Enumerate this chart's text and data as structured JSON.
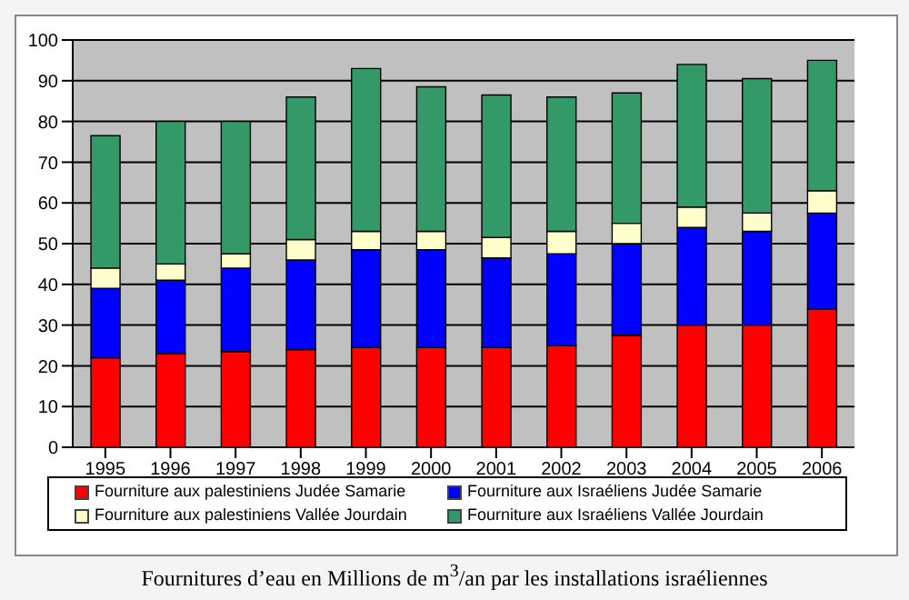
{
  "chart_data": {
    "type": "bar",
    "stacked": true,
    "categories": [
      "1995",
      "1996",
      "1997",
      "1998",
      "1999",
      "2000",
      "2001",
      "2002",
      "2003",
      "2004",
      "2005",
      "2006"
    ],
    "series": [
      {
        "name": "Fourniture aux palestiniens Judée Samarie",
        "color": "#ff0000",
        "values": [
          22,
          23,
          23.5,
          24,
          24.5,
          24.5,
          24.5,
          25,
          27.5,
          30,
          30,
          34
        ]
      },
      {
        "name": "Fourniture aux Israéliens Judée Samarie",
        "color": "#0000ff",
        "values": [
          17,
          18,
          20.5,
          22,
          24,
          24,
          22,
          22.5,
          22.5,
          24,
          23,
          23.5
        ]
      },
      {
        "name": "Fourniture aux palestiniens Vallée Jourdain",
        "color": "#ffffcc",
        "values": [
          5,
          4,
          3.5,
          5,
          4.5,
          4.5,
          5,
          5.5,
          5,
          5,
          4.5,
          5.5
        ]
      },
      {
        "name": "Fourniture aux Israéliens Vallée Jourdain",
        "color": "#339966",
        "values": [
          32.5,
          35,
          32.5,
          35,
          40,
          35.5,
          35,
          33,
          32,
          35,
          33,
          32
        ]
      }
    ],
    "ylim": [
      0,
      100
    ],
    "yticks": [
      0,
      10,
      20,
      30,
      40,
      50,
      60,
      70,
      80,
      90,
      100
    ],
    "grid": "y",
    "legend": "bottom",
    "annotations": [
      "Fournitures d’eau en Millions de m$^{3}$/an par les installations israéliennes"
    ]
  }
}
